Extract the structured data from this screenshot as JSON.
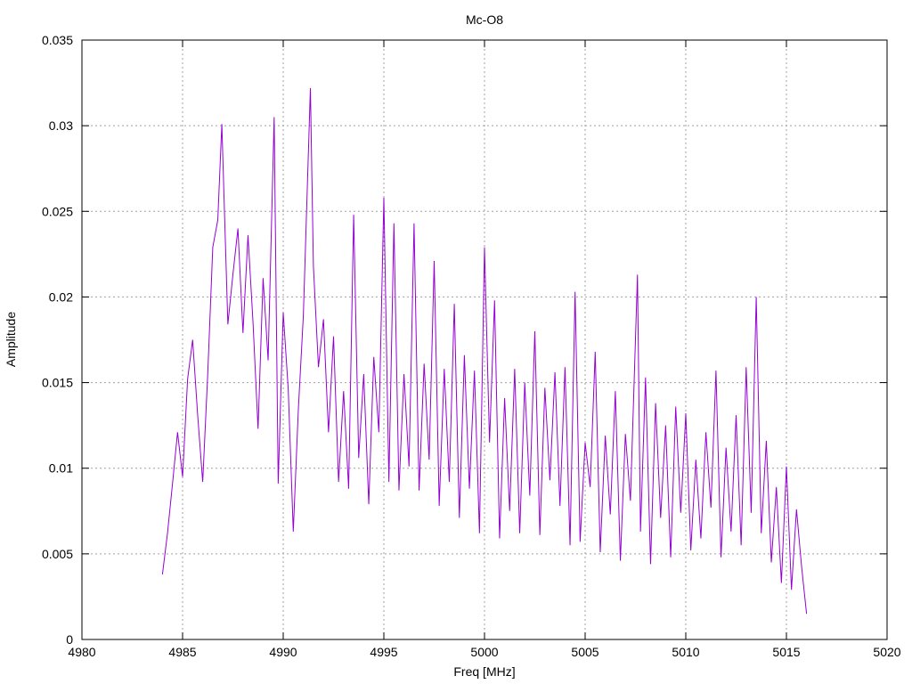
{
  "chart_data": {
    "type": "line",
    "title": "Mc-O8",
    "xlabel": "Freq [MHz]",
    "ylabel": "Amplitude",
    "xlim": [
      4980,
      5020
    ],
    "ylim": [
      0,
      0.035
    ],
    "x_ticks": [
      4980,
      4985,
      4990,
      4995,
      5000,
      5005,
      5010,
      5015,
      5020
    ],
    "x_tick_labels": [
      "4980",
      "4985",
      "4990",
      "4995",
      "5000",
      "5005",
      "5010",
      "5015",
      "5020"
    ],
    "y_ticks": [
      0,
      0.005,
      0.01,
      0.015,
      0.02,
      0.025,
      0.03,
      0.035
    ],
    "y_tick_labels": [
      "0",
      "0.005",
      "0.01",
      "0.015",
      "0.02",
      "0.025",
      "0.03",
      "0.035"
    ],
    "grid": true,
    "series": [
      {
        "color": "#9400d3",
        "x": [
          4984.0,
          4984.25,
          4984.5,
          4984.75,
          4985.0,
          4985.25,
          4985.5,
          4985.75,
          4986.0,
          4986.25,
          4986.5,
          4986.75,
          4986.95,
          4987.25,
          4987.5,
          4987.75,
          4988.0,
          4988.25,
          4988.5,
          4988.75,
          4989.0,
          4989.25,
          4989.55,
          4989.75,
          4990.0,
          4990.25,
          4990.5,
          4990.75,
          4991.0,
          4991.35,
          4991.5,
          4991.75,
          4992.0,
          4992.25,
          4992.5,
          4992.75,
          4993.0,
          4993.25,
          4993.5,
          4993.75,
          4994.0,
          4994.25,
          4994.5,
          4994.75,
          4995.0,
          4995.25,
          4995.5,
          4995.75,
          4996.0,
          4996.25,
          4996.5,
          4996.75,
          4997.0,
          4997.25,
          4997.5,
          4997.75,
          4998.0,
          4998.25,
          4998.5,
          4998.75,
          4999.0,
          4999.25,
          4999.5,
          4999.75,
          5000.0,
          5000.25,
          5000.5,
          5000.75,
          5001.0,
          5001.25,
          5001.5,
          5001.75,
          5002.0,
          5002.25,
          5002.5,
          5002.75,
          5003.0,
          5003.25,
          5003.5,
          5003.75,
          5004.0,
          5004.25,
          5004.5,
          5004.75,
          5005.0,
          5005.25,
          5005.5,
          5005.75,
          5006.0,
          5006.25,
          5006.5,
          5006.75,
          5007.0,
          5007.25,
          5007.6,
          5007.75,
          5008.0,
          5008.25,
          5008.5,
          5008.75,
          5009.0,
          5009.25,
          5009.5,
          5009.75,
          5010.0,
          5010.25,
          5010.5,
          5010.75,
          5011.0,
          5011.25,
          5011.5,
          5011.75,
          5012.0,
          5012.25,
          5012.5,
          5012.75,
          5013.0,
          5013.25,
          5013.5,
          5013.75,
          5014.0,
          5014.25,
          5014.5,
          5014.75,
          5015.0,
          5015.25,
          5015.5,
          5015.75,
          5016.0
        ],
        "y": [
          0.0038,
          0.0062,
          0.0091,
          0.0121,
          0.0095,
          0.0152,
          0.0175,
          0.0131,
          0.0092,
          0.0155,
          0.0229,
          0.0245,
          0.0301,
          0.0184,
          0.0213,
          0.024,
          0.0179,
          0.0236,
          0.0185,
          0.0123,
          0.0211,
          0.0163,
          0.0305,
          0.0091,
          0.0191,
          0.0146,
          0.0063,
          0.0134,
          0.0189,
          0.0322,
          0.0218,
          0.0159,
          0.0187,
          0.0121,
          0.0177,
          0.0092,
          0.0145,
          0.0088,
          0.0248,
          0.0106,
          0.0155,
          0.0079,
          0.0165,
          0.0121,
          0.0258,
          0.0092,
          0.0243,
          0.0087,
          0.0155,
          0.0101,
          0.0243,
          0.0087,
          0.0161,
          0.0105,
          0.0221,
          0.0078,
          0.0158,
          0.0092,
          0.0196,
          0.0071,
          0.0166,
          0.0088,
          0.0157,
          0.0062,
          0.0229,
          0.0115,
          0.0198,
          0.0059,
          0.0141,
          0.0075,
          0.0158,
          0.0062,
          0.015,
          0.0084,
          0.018,
          0.0061,
          0.0147,
          0.0093,
          0.0156,
          0.0078,
          0.0159,
          0.0055,
          0.0203,
          0.0057,
          0.0115,
          0.0089,
          0.0168,
          0.0051,
          0.0119,
          0.0073,
          0.0145,
          0.0046,
          0.012,
          0.0081,
          0.0213,
          0.0063,
          0.0153,
          0.0044,
          0.0138,
          0.0071,
          0.0125,
          0.0048,
          0.0136,
          0.0074,
          0.0132,
          0.0052,
          0.0105,
          0.0059,
          0.0121,
          0.0077,
          0.0157,
          0.0048,
          0.0112,
          0.0063,
          0.0131,
          0.0055,
          0.0159,
          0.0074,
          0.02,
          0.0062,
          0.0116,
          0.0045,
          0.0089,
          0.0033,
          0.0101,
          0.0029,
          0.0076,
          0.0043,
          0.0015
        ]
      }
    ]
  }
}
